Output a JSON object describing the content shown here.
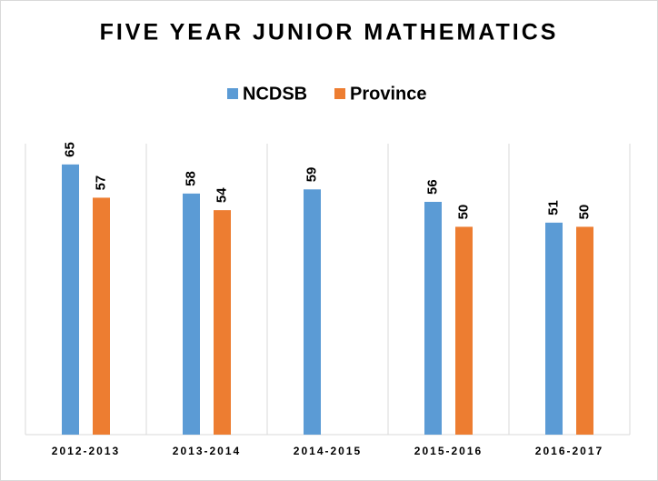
{
  "chart_data": {
    "type": "bar",
    "title": "FIVE YEAR JUNIOR MATHEMATICS",
    "categories": [
      "2012-2013",
      "2013-2014",
      "2014-2015",
      "2015-2016",
      "2016-2017"
    ],
    "series": [
      {
        "name": "NCDSB",
        "color": "#5b9bd5",
        "values": [
          65,
          58,
          59,
          56,
          51
        ]
      },
      {
        "name": "Province",
        "color": "#ed7d31",
        "values": [
          57,
          54,
          null,
          50,
          50
        ]
      }
    ],
    "ylim": [
      0,
      70
    ],
    "legend": "top"
  }
}
